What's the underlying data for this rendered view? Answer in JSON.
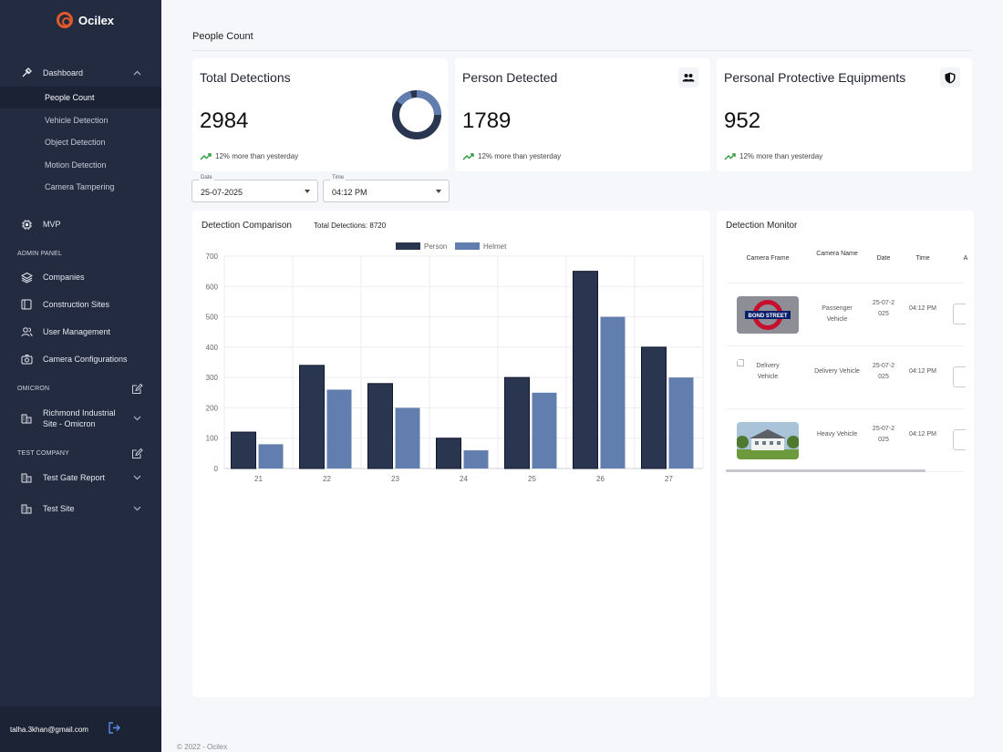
{
  "brand": {
    "name": "Ocilex"
  },
  "sidebar": {
    "dashboard_label": "Dashboard",
    "sub_items": [
      "People Count",
      "Vehicle Detection",
      "Object Detection",
      "Motion Detection",
      "Camera Tampering"
    ],
    "mvp_label": "MVP",
    "admin_panel_title": "ADMIN PANEL",
    "admin_items": [
      "Companies",
      "Construction Sites",
      "User Management",
      "Camera Configurations"
    ],
    "omicron_title": "OMICRON",
    "omicron_site": "Richmond Industrial Site - Omicron",
    "test_company_title": "TEST COMPANY",
    "test_items": [
      "Test Gate Report",
      "Test Site"
    ],
    "user_email": "talha.3khan@gmail.com"
  },
  "header": {
    "title": "People Count"
  },
  "kpis": [
    {
      "title": "Total Detections",
      "value": "2984",
      "trend": "12% more than yesterday"
    },
    {
      "title": "Person Detected",
      "value": "1789",
      "trend": "12% more than yesterday",
      "icon": "people-icon"
    },
    {
      "title": "Personal Protective Equipments",
      "value": "952",
      "trend": "12% more than yesterday",
      "icon": "shield-icon"
    }
  ],
  "filters": {
    "date_label": "Date",
    "date_value": "25-07-2025",
    "time_label": "Time",
    "time_value": "04:12 PM"
  },
  "comparison": {
    "title": "Detection Comparison",
    "total_label": "Total Detections: 8720"
  },
  "chart_data": {
    "type": "bar",
    "categories": [
      "21",
      "22",
      "23",
      "24",
      "25",
      "26",
      "27"
    ],
    "series": [
      {
        "name": "Person",
        "values": [
          120,
          340,
          280,
          100,
          300,
          650,
          400
        ],
        "color": "#2a3550"
      },
      {
        "name": "Helmet",
        "values": [
          80,
          260,
          200,
          60,
          250,
          500,
          300
        ],
        "color": "#627eae"
      }
    ],
    "ylim": [
      0,
      700
    ],
    "yticks": [
      0,
      100,
      200,
      300,
      400,
      500,
      600,
      700
    ],
    "grid": true,
    "legend": "top-center"
  },
  "monitor": {
    "title": "Detection Monitor",
    "columns": [
      "Camera Frame",
      "Camera Name",
      "Date",
      "Time",
      "A"
    ],
    "rows": [
      {
        "frame": "bond-street-image",
        "camera_name": "Passenger Vehicle",
        "date": "25-07-2025",
        "time": "04:12 PM",
        "sign_text": "BOND STREET"
      },
      {
        "frame": "broken-image",
        "frame_alt": "Delivery Vehicle",
        "camera_name": "Delivery Vehicle",
        "date": "25-07-2025",
        "time": "04:12 PM"
      },
      {
        "frame": "house-image",
        "camera_name": "Heavy Vehicle",
        "date": "25-07-2025",
        "time": "04:12 PM"
      }
    ]
  },
  "footer": {
    "text": "© 2022 - Ocilex"
  }
}
